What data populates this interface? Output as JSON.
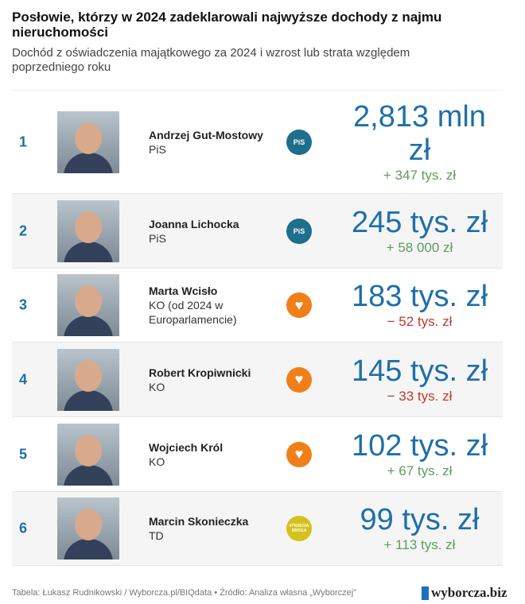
{
  "title": "Posłowie, którzy w 2024 zadeklarowali najwyższe dochody z najmu nieruchomości",
  "subtitle": "Dochód z oświadczenia majątkowego za 2024 i wzrost lub strata względem poprzedniego roku",
  "footer": "Tabela: Łukasz Rudnikowski / Wyborcza.pl/BIQdata • Źródło: Analiza własna „Wyborczej”",
  "brand": "wyborcza.biz",
  "colors": {
    "accent": "#1f6fa8",
    "up": "#5a9e5a",
    "down": "#c0392b",
    "pis": "#1d6f8c",
    "ko": "#f07f1a",
    "td": "#d4c21a"
  },
  "chart_data": {
    "type": "table",
    "columns": [
      "rank",
      "name",
      "party",
      "income",
      "change"
    ],
    "rows": [
      {
        "rank": "1",
        "name": "Andrzej Gut-Mostowy",
        "party": "PiS",
        "logo": "PiS",
        "income": "2,813 mln zł",
        "change": "+ 347 tys. zł",
        "dir": "up"
      },
      {
        "rank": "2",
        "name": "Joanna Lichocka",
        "party": "PiS",
        "logo": "PiS",
        "income": "245 tys. zł",
        "change": "+ 58 000 zł",
        "dir": "up"
      },
      {
        "rank": "3",
        "name": "Marta Wcisło",
        "party": "KO (od 2024 w Europarlamencie)",
        "logo": "♥",
        "income": "183 tys. zł",
        "change": "− 52 tys. zł",
        "dir": "down"
      },
      {
        "rank": "4",
        "name": "Robert Kropiwnicki",
        "party": "KO",
        "logo": "♥",
        "income": "145 tys. zł",
        "change": "− 33 tys. zł",
        "dir": "down"
      },
      {
        "rank": "5",
        "name": "Wojciech Król",
        "party": "KO",
        "logo": "♥",
        "income": "102 tys. zł",
        "change": "+ 67 tys. zł",
        "dir": "up"
      },
      {
        "rank": "6",
        "name": "Marcin Skonieczka",
        "party": "TD",
        "logo": "#TRZECIA DROGA",
        "income": "99 tys. zł",
        "change": "+ 113 tys. zł",
        "dir": "up"
      }
    ]
  }
}
